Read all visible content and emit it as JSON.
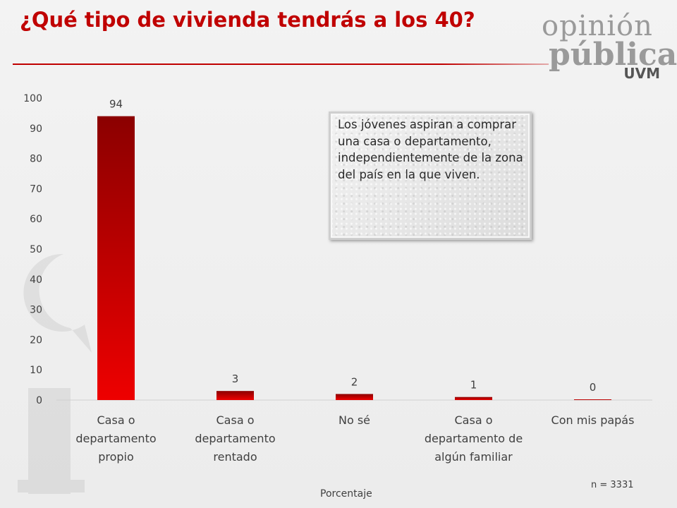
{
  "header": {
    "title": "¿Qué tipo de vivienda tendrás a los 40?"
  },
  "logo": {
    "line1": "opinión",
    "line2": "pública",
    "line3": "UVM"
  },
  "colors": {
    "accent": "#c00000",
    "bar_top": "#8b0000",
    "bar_bottom": "#ee0000"
  },
  "callout": {
    "text": "Los jóvenes aspiran a comprar una casa o departamento, independientemente de la zona del país en la que viven."
  },
  "footer": {
    "n_text": "n = 3331"
  },
  "chart_data": {
    "type": "bar",
    "categories": [
      [
        "Casa o",
        "departamento",
        "propio"
      ],
      [
        "Casa o",
        "departamento",
        "rentado"
      ],
      [
        "No sé"
      ],
      [
        "Casa o",
        "departamento de",
        "algún familiar"
      ],
      [
        "Con mis papás"
      ]
    ],
    "values": [
      94,
      3,
      2,
      1,
      0
    ],
    "data_labels": [
      "94",
      "3",
      "2",
      "1",
      "0"
    ],
    "ylim": [
      0,
      100
    ],
    "yticks": [
      0,
      10,
      20,
      30,
      40,
      50,
      60,
      70,
      80,
      90,
      100
    ],
    "xlabel": "Porcentaje",
    "ylabel": "",
    "grid": false,
    "legend": "none"
  }
}
